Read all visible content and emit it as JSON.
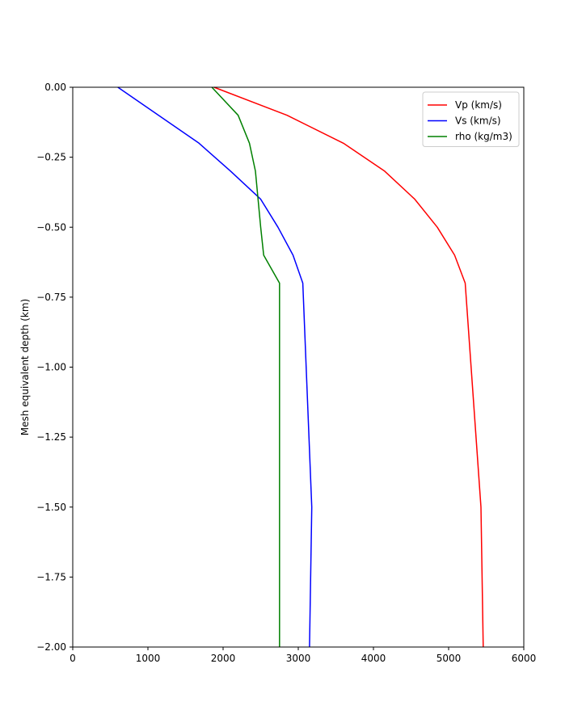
{
  "chart_data": {
    "type": "line",
    "title": "",
    "xlabel": "",
    "ylabel": "Mesh equivalent depth (km)",
    "xlim": [
      0,
      6000
    ],
    "ylim": [
      -2.0,
      0.0
    ],
    "xticks": [
      0,
      1000,
      2000,
      3000,
      4000,
      5000,
      6000
    ],
    "yticks": [
      0.0,
      -0.25,
      -0.5,
      -0.75,
      -1.0,
      -1.25,
      -1.5,
      -1.75,
      -2.0
    ],
    "xtick_labels": [
      "0",
      "1000",
      "2000",
      "3000",
      "4000",
      "5000",
      "6000"
    ],
    "ytick_labels": [
      "0.00",
      "−0.25",
      "−0.50",
      "−0.75",
      "−1.00",
      "−1.25",
      "−1.50",
      "−1.75",
      "−2.00"
    ],
    "grid": false,
    "legend_position": "top-right",
    "series": [
      {
        "name": "Vp (km/s)",
        "color": "#ff0000",
        "x": [
          1880,
          2850,
          3600,
          4150,
          4550,
          4850,
          5080,
          5220,
          5430,
          5460
        ],
        "y": [
          0.0,
          -0.1,
          -0.2,
          -0.3,
          -0.4,
          -0.5,
          -0.6,
          -0.7,
          -1.5,
          -2.0
        ]
      },
      {
        "name": "Vs (km/s)",
        "color": "#0000ff",
        "x": [
          600,
          1680,
          2100,
          2500,
          2730,
          2930,
          3060,
          3180,
          3150
        ],
        "y": [
          0.0,
          -0.2,
          -0.3,
          -0.4,
          -0.5,
          -0.6,
          -0.7,
          -1.5,
          -2.0
        ]
      },
      {
        "name": "rho (kg/m3)",
        "color": "#008000",
        "x": [
          1850,
          2200,
          2350,
          2430,
          2500,
          2540,
          2750,
          2750
        ],
        "y": [
          0.0,
          -0.1,
          -0.2,
          -0.3,
          -0.5,
          -0.6,
          -0.7,
          -2.0
        ]
      }
    ]
  }
}
